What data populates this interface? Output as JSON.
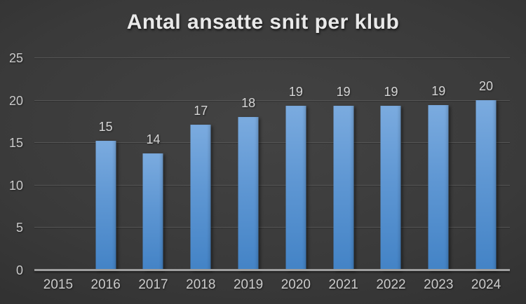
{
  "title": "Antal ansatte snit per klub",
  "chart_data": {
    "type": "bar",
    "title": "Antal ansatte snit per klub",
    "categories": [
      "2015",
      "2016",
      "2017",
      "2018",
      "2019",
      "2020",
      "2021",
      "2022",
      "2023",
      "2024"
    ],
    "values": [
      null,
      15,
      14,
      17,
      18,
      19,
      19,
      19,
      19,
      20
    ],
    "precise_values": [
      null,
      15.3,
      13.8,
      17.2,
      18.1,
      19.35,
      19.35,
      19.4,
      19.45,
      20.05
    ],
    "data_labels": [
      "",
      "15",
      "14",
      "17",
      "18",
      "19",
      "19",
      "19",
      "19",
      "20"
    ],
    "xlabel": "",
    "ylabel": "",
    "ylim": [
      0,
      25
    ],
    "yticks": [
      0,
      5,
      10,
      15,
      20,
      25
    ],
    "grid": true,
    "legend": false,
    "colors": {
      "bar_top": "#7babdf",
      "bar_bottom": "#4383c6",
      "gridline": "#565656",
      "axis_line": "#9f9f9f",
      "tick_text": "#cbcbcb",
      "data_label_text": "#d6d6d6",
      "title_text": "#e9e9e9",
      "background_center": "#434343",
      "background_edge": "#252525"
    }
  }
}
